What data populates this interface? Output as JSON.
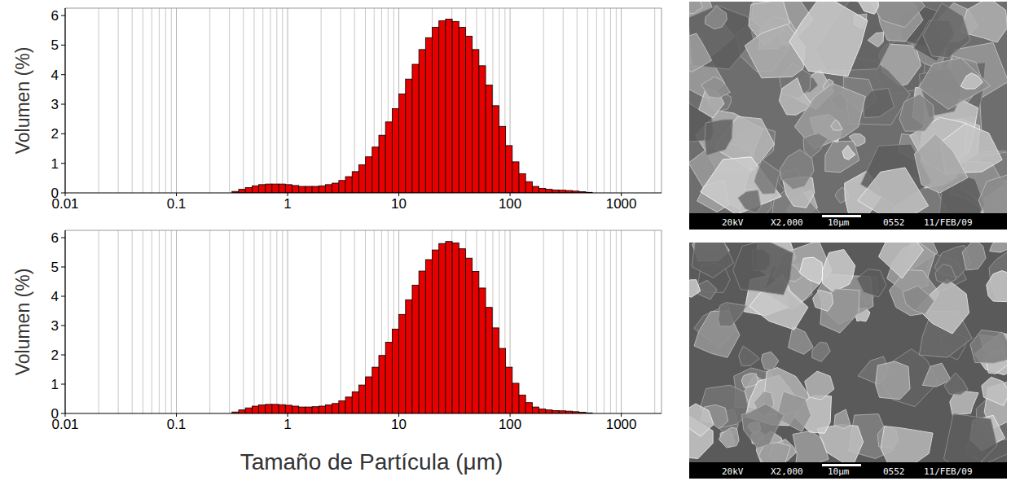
{
  "chart_data": [
    {
      "type": "histogram",
      "y_label": "Volumen (%)",
      "log": "x",
      "grid": true,
      "color": "#e60000",
      "xlim": [
        0.01,
        2300
      ],
      "ylim": [
        0,
        6.25
      ],
      "xticks": [
        0.01,
        0.1,
        1,
        10,
        100,
        1000
      ],
      "yticks": [
        0,
        1,
        2,
        3,
        4,
        5,
        6
      ],
      "bins": [
        0.316,
        0.363,
        0.417,
        0.479,
        0.55,
        0.631,
        0.724,
        0.832,
        0.955,
        1.096,
        1.259,
        1.445,
        1.66,
        1.905,
        2.188,
        2.512,
        2.884,
        3.311,
        3.802,
        4.365,
        5.012,
        5.754,
        6.607,
        7.586,
        8.71,
        10.0,
        11.482,
        13.183,
        15.136,
        17.378,
        19.953,
        22.909,
        26.303,
        30.2,
        34.674,
        39.811,
        45.709,
        52.481,
        60.256,
        69.183,
        79.433,
        91.201,
        104.713,
        120.226,
        138.038,
        158.489,
        181.97,
        208.93,
        239.883,
        275.423,
        316.228,
        363.078,
        416.869,
        478.63,
        549.541
      ],
      "values": [
        0.05,
        0.12,
        0.18,
        0.24,
        0.28,
        0.3,
        0.3,
        0.3,
        0.28,
        0.25,
        0.22,
        0.22,
        0.22,
        0.24,
        0.28,
        0.33,
        0.42,
        0.55,
        0.72,
        0.95,
        1.22,
        1.55,
        1.95,
        2.4,
        2.85,
        3.35,
        3.85,
        4.35,
        4.85,
        5.25,
        5.6,
        5.82,
        5.88,
        5.8,
        5.6,
        5.3,
        4.85,
        4.3,
        3.65,
        2.95,
        2.25,
        1.6,
        1.05,
        0.65,
        0.38,
        0.22,
        0.15,
        0.12,
        0.1,
        0.09,
        0.08,
        0.06,
        0.04,
        0.02
      ]
    },
    {
      "type": "histogram",
      "y_label": "Volumen (%)",
      "x_label": "Tamaño de Partícula (μm)",
      "log": "x",
      "grid": true,
      "color": "#e60000",
      "xlim": [
        0.01,
        2300
      ],
      "ylim": [
        0,
        6.25
      ],
      "xticks": [
        0.01,
        0.1,
        1,
        10,
        100,
        1000
      ],
      "yticks": [
        0,
        1,
        2,
        3,
        4,
        5,
        6
      ],
      "bins": [
        0.316,
        0.363,
        0.417,
        0.479,
        0.55,
        0.631,
        0.724,
        0.832,
        0.955,
        1.096,
        1.259,
        1.445,
        1.66,
        1.905,
        2.188,
        2.512,
        2.884,
        3.311,
        3.802,
        4.365,
        5.012,
        5.754,
        6.607,
        7.586,
        8.71,
        10.0,
        11.482,
        13.183,
        15.136,
        17.378,
        19.953,
        22.909,
        26.303,
        30.2,
        34.674,
        39.811,
        45.709,
        52.481,
        60.256,
        69.183,
        79.433,
        91.201,
        104.713,
        120.226,
        138.038,
        158.489,
        181.97,
        208.93,
        239.883,
        275.423,
        316.228,
        363.078,
        416.869,
        478.63,
        549.541
      ],
      "values": [
        0.05,
        0.12,
        0.19,
        0.25,
        0.29,
        0.31,
        0.31,
        0.3,
        0.28,
        0.25,
        0.22,
        0.22,
        0.23,
        0.25,
        0.29,
        0.34,
        0.43,
        0.56,
        0.74,
        0.97,
        1.25,
        1.58,
        1.98,
        2.43,
        2.88,
        3.38,
        3.88,
        4.38,
        4.86,
        5.25,
        5.58,
        5.8,
        5.87,
        5.82,
        5.62,
        5.3,
        4.85,
        4.28,
        3.62,
        2.92,
        2.22,
        1.58,
        1.03,
        0.63,
        0.37,
        0.22,
        0.15,
        0.12,
        0.1,
        0.09,
        0.08,
        0.06,
        0.04,
        0.02
      ]
    }
  ],
  "images": [
    {
      "labels": [
        "20kV",
        "X2,000",
        "10μm",
        "0552",
        "11/FEB/09"
      ]
    },
    {
      "labels": [
        "20kV",
        "X2,000",
        "10μm",
        "0552",
        "11/FEB/09"
      ]
    }
  ]
}
